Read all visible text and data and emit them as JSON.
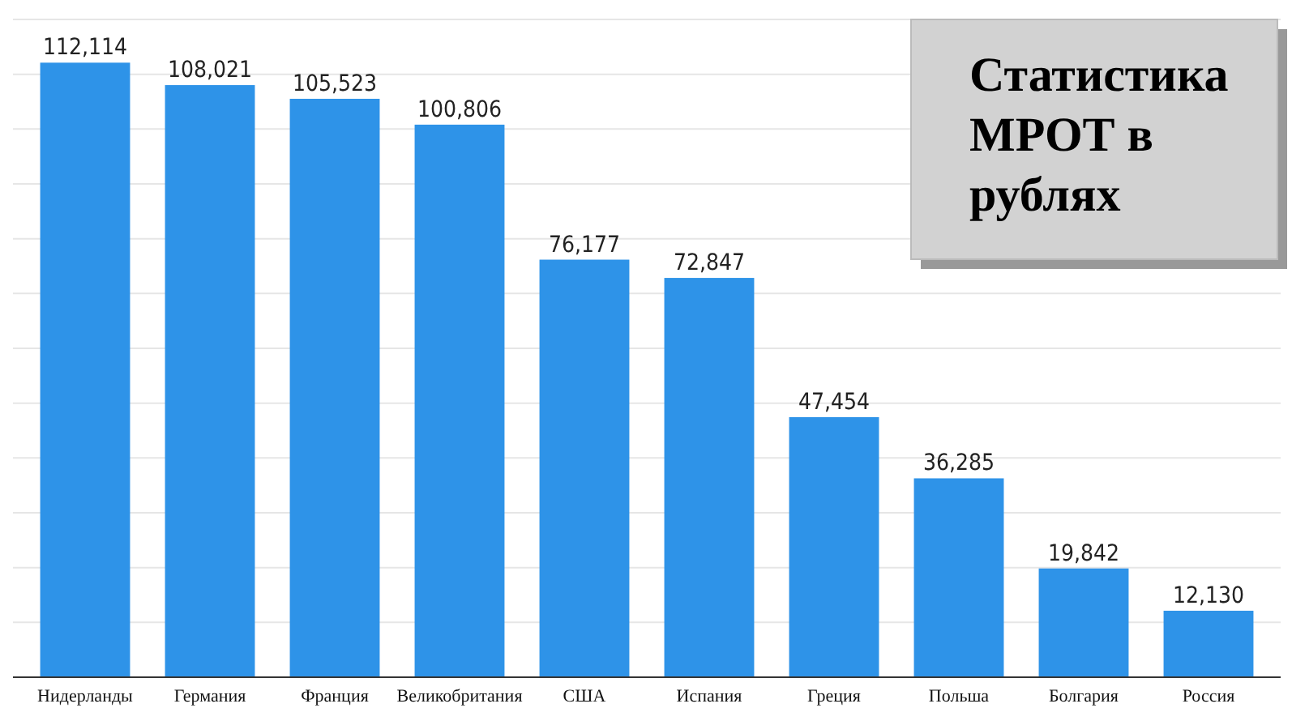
{
  "chart_data": {
    "type": "bar",
    "title": "Статистика МРОТ в рублях",
    "categories": [
      "Нидерланды",
      "Германия",
      "Франция",
      "Великобритания",
      "США",
      "Испания",
      "Греция",
      "Польша",
      "Болгария",
      "Россия"
    ],
    "values": [
      112114,
      108021,
      105523,
      100806,
      76177,
      72847,
      47454,
      36285,
      19842,
      12130
    ],
    "value_labels": [
      "112,114",
      "108,021",
      "105,523",
      "100,806",
      "76,177",
      "72,847",
      "47,454",
      "36,285",
      "19,842",
      "12,130"
    ],
    "color": "#2e93e8",
    "ylim": [
      0,
      120000
    ],
    "yticks": [
      {
        "value": 0,
        "label": null
      },
      {
        "value": 10000,
        "label": null
      },
      {
        "value": 20000,
        "label": null
      },
      {
        "value": 30000,
        "label": null
      },
      {
        "value": 40000,
        "label": null
      },
      {
        "value": 50000,
        "label": null
      },
      {
        "value": 60000,
        "label": null
      },
      {
        "value": 70000,
        "label": null
      },
      {
        "value": 80000,
        "label": null
      },
      {
        "value": 90000,
        "label": null
      },
      {
        "value": 100000,
        "label": null
      },
      {
        "value": 110000,
        "label": null
      },
      {
        "value": 120000,
        "label": null
      }
    ],
    "grid": "y"
  }
}
